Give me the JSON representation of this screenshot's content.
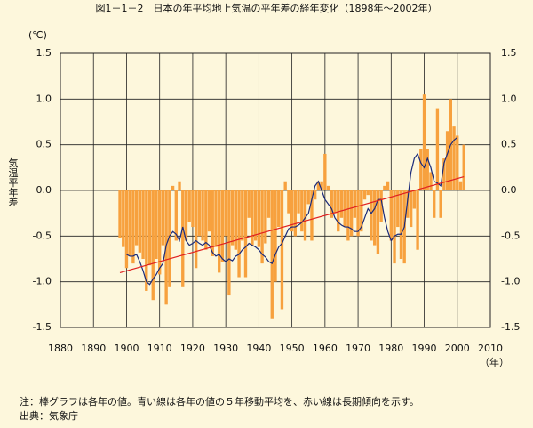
{
  "chart_data": {
    "type": "bar",
    "title": "図1－1－2　日本の年平均地上気温の平年差の経年変化（1898年～2002年）",
    "y_unit": "(℃)",
    "y_label": "気温平年差",
    "x_unit": "（年）",
    "note": "注：棒グラフは各年の値。青い線は各年の値の５年移動平均を、赤い線は長期傾向を示す。",
    "source": "出典：気象庁",
    "xlim": [
      1880,
      2010
    ],
    "xticks": [
      1880,
      1890,
      1900,
      1910,
      1920,
      1930,
      1940,
      1950,
      1960,
      1970,
      1980,
      1990,
      2000,
      2010
    ],
    "ylim": [
      -1.5,
      1.5
    ],
    "yticks": [
      -1.5,
      {
        "value": -1,
        "label": "-1.0"
      },
      -0.5,
      {
        "value": 0,
        "label": "0.0"
      },
      0.5,
      {
        "value": 1,
        "label": "1.0"
      },
      1.5
    ],
    "grid": true,
    "series": [
      {
        "type": "bar",
        "color": "#f7a13e",
        "x": [
          1898,
          1899,
          1900,
          1901,
          1902,
          1903,
          1904,
          1905,
          1906,
          1907,
          1908,
          1909,
          1910,
          1911,
          1912,
          1913,
          1914,
          1915,
          1916,
          1917,
          1918,
          1919,
          1920,
          1921,
          1922,
          1923,
          1924,
          1925,
          1926,
          1927,
          1928,
          1929,
          1930,
          1931,
          1932,
          1933,
          1934,
          1935,
          1936,
          1937,
          1938,
          1939,
          1940,
          1941,
          1942,
          1943,
          1944,
          1945,
          1946,
          1947,
          1948,
          1949,
          1950,
          1951,
          1952,
          1953,
          1954,
          1955,
          1956,
          1957,
          1958,
          1959,
          1960,
          1961,
          1962,
          1963,
          1964,
          1965,
          1966,
          1967,
          1968,
          1969,
          1970,
          1971,
          1972,
          1973,
          1974,
          1975,
          1976,
          1977,
          1978,
          1979,
          1980,
          1981,
          1982,
          1983,
          1984,
          1985,
          1986,
          1987,
          1988,
          1989,
          1990,
          1991,
          1992,
          1993,
          1994,
          1995,
          1996,
          1997,
          1998,
          1999,
          2000,
          2001,
          2002
        ],
        "values": [
          -0.52,
          -0.62,
          -0.85,
          -0.72,
          -0.8,
          -0.6,
          -0.68,
          -0.75,
          -1.1,
          -0.82,
          -1.2,
          -0.75,
          -0.92,
          -0.6,
          -1.25,
          -1.05,
          0.05,
          -0.55,
          0.1,
          -1.05,
          -0.55,
          -0.35,
          -0.4,
          -0.85,
          -0.5,
          -0.55,
          -0.65,
          -0.45,
          -0.72,
          -0.62,
          -0.9,
          -0.78,
          -0.5,
          -1.15,
          -0.6,
          -0.65,
          -0.95,
          -0.55,
          -0.95,
          -0.3,
          -0.6,
          -0.55,
          -0.62,
          -0.8,
          -0.58,
          -0.3,
          -1.4,
          -1.0,
          -0.4,
          -1.3,
          0.1,
          -0.25,
          -0.45,
          -0.5,
          -0.25,
          -0.45,
          -0.55,
          -0.15,
          -0.55,
          -0.1,
          0.1,
          0.1,
          0.4,
          0.05,
          -0.3,
          -0.25,
          -0.45,
          -0.3,
          -0.4,
          -0.55,
          -0.5,
          -0.3,
          -0.5,
          -0.45,
          -0.1,
          -0.05,
          -0.55,
          -0.6,
          -0.7,
          -0.35,
          0.05,
          0.1,
          -0.55,
          -0.8,
          -0.4,
          -0.75,
          -0.8,
          -0.3,
          -0.4,
          -0.2,
          -0.65,
          0.45,
          1.05,
          0.45,
          0.2,
          -0.3,
          0.9,
          -0.3,
          0.35,
          0.65,
          1.0,
          0.7,
          0.6,
          0.1,
          0.5
        ]
      },
      {
        "type": "line",
        "color": "#1a2a7a",
        "x": [
          1900,
          1901,
          1902,
          1903,
          1904,
          1905,
          1906,
          1907,
          1908,
          1909,
          1910,
          1911,
          1912,
          1913,
          1914,
          1915,
          1916,
          1917,
          1918,
          1919,
          1920,
          1921,
          1922,
          1923,
          1924,
          1925,
          1926,
          1927,
          1928,
          1929,
          1930,
          1931,
          1932,
          1933,
          1934,
          1935,
          1936,
          1937,
          1938,
          1939,
          1940,
          1941,
          1942,
          1943,
          1944,
          1945,
          1946,
          1947,
          1948,
          1949,
          1950,
          1951,
          1952,
          1953,
          1954,
          1955,
          1956,
          1957,
          1958,
          1959,
          1960,
          1961,
          1962,
          1963,
          1964,
          1965,
          1966,
          1967,
          1968,
          1969,
          1970,
          1971,
          1972,
          1973,
          1974,
          1975,
          1976,
          1977,
          1978,
          1979,
          1980,
          1981,
          1982,
          1983,
          1984,
          1985,
          1986,
          1987,
          1988,
          1989,
          1990,
          1991,
          1992,
          1993,
          1994,
          1995,
          1996,
          1997,
          1998,
          1999,
          2000
        ],
        "values": [
          -0.7,
          -0.72,
          -0.72,
          -0.7,
          -0.78,
          -0.88,
          -1.0,
          -1.03,
          -0.97,
          -0.92,
          -0.85,
          -0.8,
          -0.6,
          -0.5,
          -0.45,
          -0.48,
          -0.55,
          -0.4,
          -0.55,
          -0.6,
          -0.58,
          -0.55,
          -0.58,
          -0.6,
          -0.57,
          -0.6,
          -0.68,
          -0.72,
          -0.7,
          -0.75,
          -0.78,
          -0.75,
          -0.77,
          -0.72,
          -0.7,
          -0.65,
          -0.62,
          -0.58,
          -0.6,
          -0.62,
          -0.65,
          -0.7,
          -0.73,
          -0.78,
          -0.8,
          -0.7,
          -0.62,
          -0.58,
          -0.5,
          -0.42,
          -0.4,
          -0.4,
          -0.38,
          -0.35,
          -0.3,
          -0.25,
          -0.1,
          0.05,
          0.1,
          0.0,
          -0.1,
          -0.15,
          -0.2,
          -0.3,
          -0.35,
          -0.38,
          -0.4,
          -0.4,
          -0.42,
          -0.45,
          -0.45,
          -0.4,
          -0.3,
          -0.2,
          -0.25,
          -0.2,
          -0.1,
          -0.1,
          -0.3,
          -0.45,
          -0.55,
          -0.5,
          -0.48,
          -0.48,
          -0.4,
          -0.1,
          0.2,
          0.35,
          0.4,
          0.3,
          0.25,
          0.35,
          0.25,
          0.1,
          0.08,
          0.05,
          0.3,
          0.4,
          0.5,
          0.55,
          0.58
        ]
      },
      {
        "type": "line",
        "color": "#e02020",
        "x": [
          1898,
          2002
        ],
        "values": [
          -0.9,
          0.15
        ]
      }
    ]
  }
}
